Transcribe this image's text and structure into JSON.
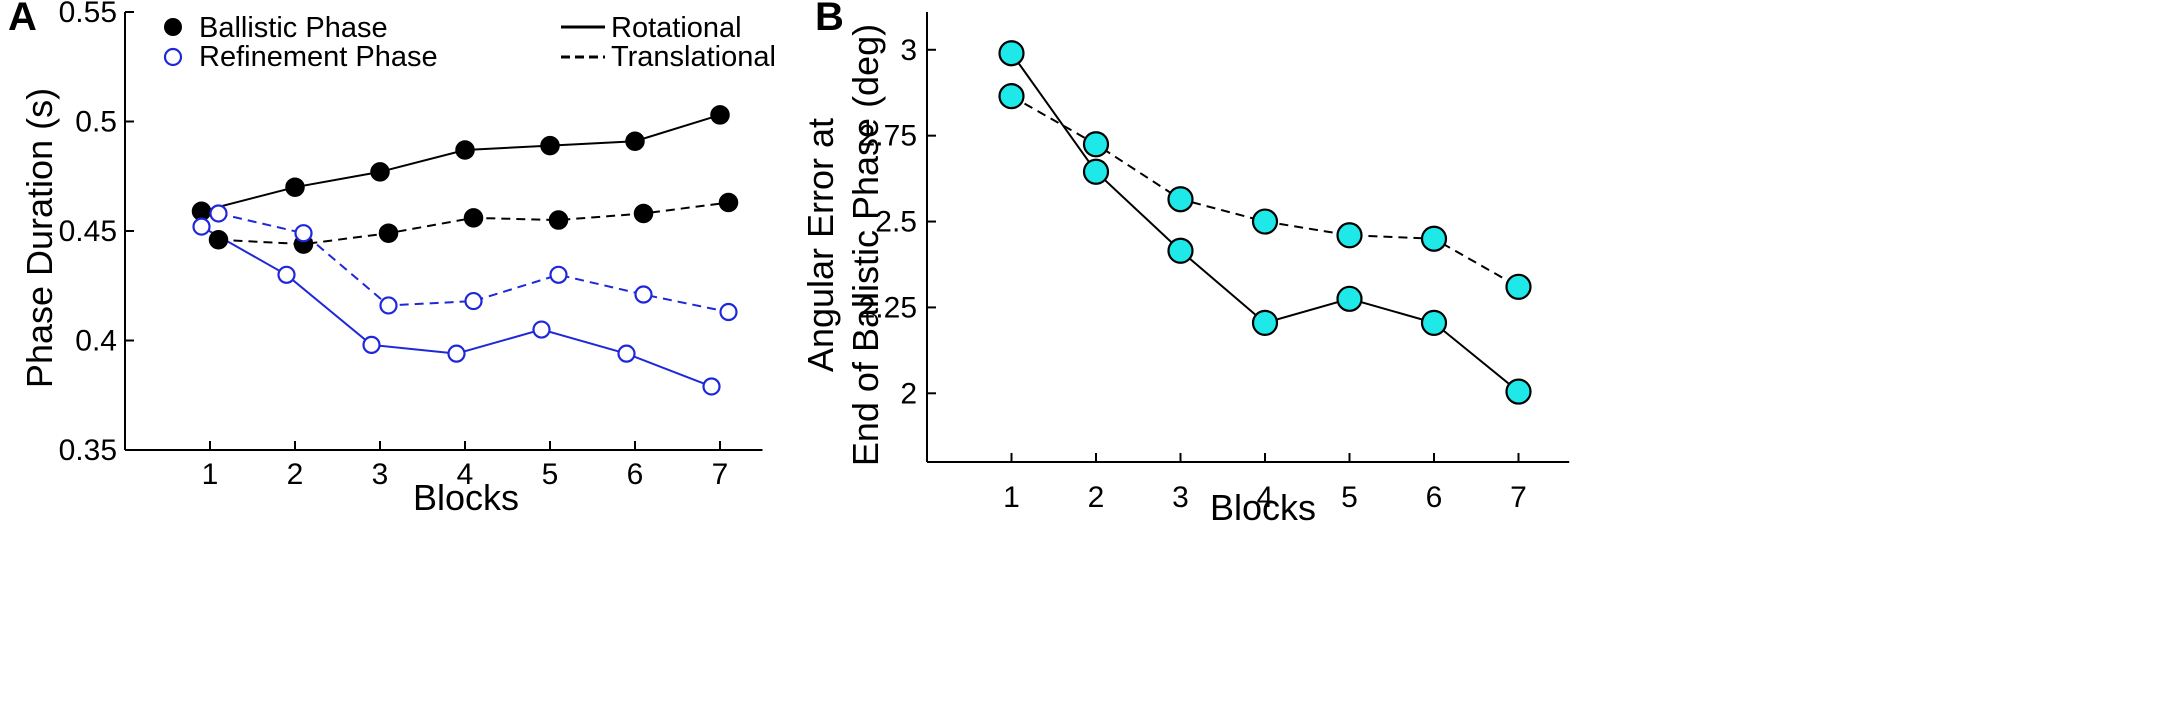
{
  "chart_data": [
    {
      "panel_label": "A",
      "type": "line",
      "xlabel": "Blocks",
      "ylabel": "Phase Duration (s)",
      "categories": [
        1,
        2,
        3,
        4,
        5,
        6,
        7
      ],
      "x_tick_labels": [
        "1",
        "2",
        "3",
        "4",
        "5",
        "6",
        "7"
      ],
      "y_ticks": [
        0.35,
        0.4,
        0.45,
        0.5,
        0.55
      ],
      "y_tick_labels": [
        "0.35",
        "0.4",
        "0.45",
        "0.5",
        "0.55"
      ],
      "ylim": [
        0.35,
        0.55
      ],
      "xlim": [
        0,
        7.5
      ],
      "grid": false,
      "legend": {
        "placement": "top",
        "markers": [
          {
            "label": "Ballistic Phase",
            "style": "filled",
            "color": "#000000"
          },
          {
            "label": "Refinement Phase",
            "style": "open",
            "color": "#1f28d8"
          }
        ],
        "lines": [
          {
            "label": "Rotational",
            "style": "solid"
          },
          {
            "label": "Translational",
            "style": "dashed"
          }
        ]
      },
      "series": [
        {
          "name": "Ballistic Phase - Rotational",
          "phase": "ballistic",
          "condition": "rotational",
          "color": "#000000",
          "filled": true,
          "dashed": false,
          "x": [
            0.9,
            2,
            3,
            4,
            5,
            6,
            7
          ],
          "values": [
            0.459,
            0.47,
            0.477,
            0.487,
            0.489,
            0.491,
            0.503
          ]
        },
        {
          "name": "Ballistic Phase - Translational",
          "phase": "ballistic",
          "condition": "translational",
          "color": "#000000",
          "filled": true,
          "dashed": false,
          "x": [
            1.1,
            2.1,
            3.1,
            4.1,
            5.1,
            6.1,
            7.1
          ],
          "values": [
            0.446,
            0.444,
            0.449,
            0.456,
            0.455,
            0.458,
            0.463
          ],
          "dashed_override": true
        },
        {
          "name": "Refinement Phase - Rotational",
          "phase": "refinement",
          "condition": "rotational",
          "color": "#1f28d8",
          "filled": false,
          "dashed": false,
          "x": [
            0.9,
            1.9,
            2.9,
            3.9,
            4.9,
            5.9,
            6.9
          ],
          "values": [
            0.452,
            0.43,
            0.398,
            0.394,
            0.405,
            0.394,
            0.379
          ]
        },
        {
          "name": "Refinement Phase - Translational",
          "phase": "refinement",
          "condition": "translational",
          "color": "#1f28d8",
          "filled": false,
          "dashed": true,
          "x": [
            1.1,
            2.1,
            3.1,
            4.1,
            5.1,
            6.1,
            7.1
          ],
          "values": [
            0.458,
            0.449,
            0.416,
            0.418,
            0.43,
            0.421,
            0.413
          ]
        }
      ]
    },
    {
      "panel_label": "B",
      "type": "line",
      "xlabel": "Blocks",
      "ylabel": [
        "Angular Error at",
        "End of Ballistic Phase (deg)"
      ],
      "categories": [
        1,
        2,
        3,
        4,
        5,
        6,
        7
      ],
      "x_tick_labels": [
        "1",
        "2",
        "3",
        "4",
        "5",
        "6",
        "7"
      ],
      "y_ticks": [
        2,
        2.25,
        2.5,
        2.75,
        3
      ],
      "y_tick_labels": [
        "2",
        "2.25",
        "2.5",
        "2.75",
        "3"
      ],
      "ylim": [
        1.8,
        3.11
      ],
      "xlim": [
        0,
        7.6
      ],
      "grid": false,
      "series": [
        {
          "name": "Rotational",
          "condition": "rotational",
          "color": "#1fe8e8",
          "dashed": false,
          "x": [
            1,
            2,
            3,
            4,
            5,
            6,
            7
          ],
          "values": [
            2.99,
            2.645,
            2.415,
            2.205,
            2.275,
            2.205,
            2.005
          ]
        },
        {
          "name": "Translational",
          "condition": "translational",
          "color": "#1fe8e8",
          "dashed": true,
          "x": [
            1,
            2,
            3,
            4,
            5,
            6,
            7
          ],
          "values": [
            2.865,
            2.725,
            2.565,
            2.5,
            2.46,
            2.45,
            2.31
          ]
        }
      ]
    }
  ]
}
